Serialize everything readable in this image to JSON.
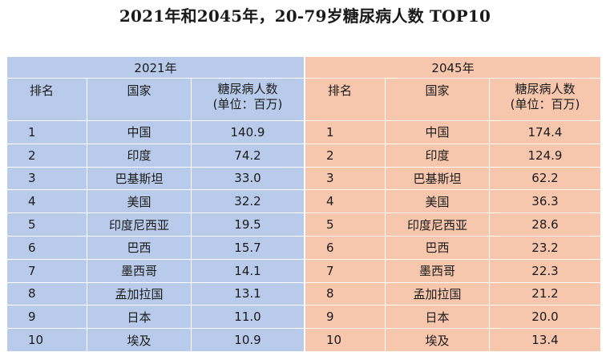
{
  "title": "2021年和2045年，20-79岁糖尿病人数 TOP10",
  "headers": {
    "rank": "排名",
    "country": "国家",
    "value_line1": "糖尿病人数",
    "value_line2": "(单位：百万)"
  },
  "year_2021": {
    "label": "2021年",
    "rows": [
      {
        "rank": "1",
        "country": "中国",
        "value": "140.9"
      },
      {
        "rank": "2",
        "country": "印度",
        "value": "74.2"
      },
      {
        "rank": "3",
        "country": "巴基斯坦",
        "value": "33.0"
      },
      {
        "rank": "4",
        "country": "美国",
        "value": "32.2"
      },
      {
        "rank": "5",
        "country": "印度尼西亚",
        "value": "19.5"
      },
      {
        "rank": "6",
        "country": "巴西",
        "value": "15.7"
      },
      {
        "rank": "7",
        "country": "墨西哥",
        "value": "14.1"
      },
      {
        "rank": "8",
        "country": "孟加拉国",
        "value": "13.1"
      },
      {
        "rank": "9",
        "country": "日本",
        "value": "11.0"
      },
      {
        "rank": "10",
        "country": "埃及",
        "value": "10.9"
      }
    ]
  },
  "year_2045": {
    "label": "2045年",
    "rows": [
      {
        "rank": "1",
        "country": "中国",
        "value": "174.4"
      },
      {
        "rank": "2",
        "country": "印度",
        "value": "124.9"
      },
      {
        "rank": "3",
        "country": "巴基斯坦",
        "value": "62.2"
      },
      {
        "rank": "4",
        "country": "美国",
        "value": "36.3"
      },
      {
        "rank": "5",
        "country": "印度尼西亚",
        "value": "28.6"
      },
      {
        "rank": "6",
        "country": "巴西",
        "value": "23.2"
      },
      {
        "rank": "7",
        "country": "墨西哥",
        "value": "22.3"
      },
      {
        "rank": "8",
        "country": "孟加拉国",
        "value": "21.2"
      },
      {
        "rank": "9",
        "country": "日本",
        "value": "20.0"
      },
      {
        "rank": "10",
        "country": "埃及",
        "value": "13.4"
      }
    ]
  },
  "colors": {
    "table_2021_bg": "#b9cbeb",
    "table_2045_bg": "#f7c7ad",
    "grid_line": "#ffffff"
  }
}
